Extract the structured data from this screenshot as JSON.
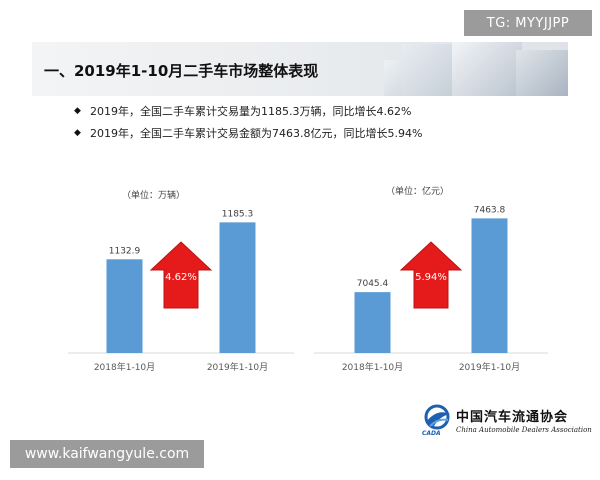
{
  "header": {
    "title": "一、2019年1-10月二手车市场整体表现"
  },
  "bullets": [
    "2019年，全国二手车累计交易量为1185.3万辆，同比增长4.62%",
    "2019年，全国二手车累计交易金额为7463.8亿元，同比增长5.94%"
  ],
  "chart_data": [
    {
      "type": "bar",
      "title": "",
      "unit_note": "（单位：万辆）",
      "categories": [
        "2018年1-10月",
        "2019年1-10月"
      ],
      "values": [
        1132.9,
        1185.3
      ],
      "value_labels": [
        "1132.9",
        "1185.3"
      ],
      "growth_label": "4.62%",
      "ylim": [
        1000,
        1200
      ],
      "grid": false,
      "bar_color": "#5b9bd5",
      "arrow_color": "#e51b1b"
    },
    {
      "type": "bar",
      "title": "",
      "unit_note": "（单位：亿元）",
      "categories": [
        "2018年1-10月",
        "2019年1-10月"
      ],
      "values": [
        7045.4,
        7463.8
      ],
      "value_labels": [
        "7045.4",
        "7463.8"
      ],
      "growth_label": "5.94%",
      "ylim": [
        6700,
        7500
      ],
      "grid": false,
      "bar_color": "#5b9bd5",
      "arrow_color": "#e51b1b"
    }
  ],
  "logo": {
    "cn_name": "中国汽车流通协会",
    "en_name": "China Automobile Dealers Association",
    "abbr": "CADA",
    "emblem_icon": "cada-emblem-icon"
  },
  "watermarks": {
    "top_right": "TG: MYYJJPP",
    "bottom_left": "www.kaifwangyule.com"
  }
}
